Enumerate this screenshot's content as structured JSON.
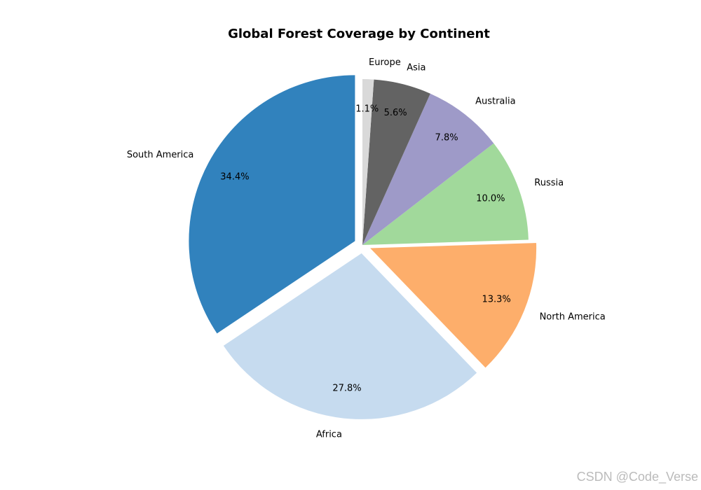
{
  "chart_data": {
    "type": "pie",
    "title": "Global Forest Coverage by Continent",
    "categories": [
      "South America",
      "Africa",
      "North America",
      "Russia",
      "Australia",
      "Asia",
      "Europe"
    ],
    "values": [
      34.4,
      27.8,
      13.3,
      10.0,
      7.8,
      5.6,
      1.1
    ],
    "value_labels": [
      "34.4%",
      "27.8%",
      "13.3%",
      "10.0%",
      "7.8%",
      "5.6%",
      "1.1%"
    ],
    "colors": [
      "#3182bd",
      "#c6dbef",
      "#fdae6b",
      "#a1d99b",
      "#9e9ac8",
      "#636363",
      "#d9d9d9"
    ],
    "explode": [
      true,
      true,
      true,
      false,
      false,
      false,
      false
    ],
    "watermark": "CSDN @Code_Verse"
  }
}
